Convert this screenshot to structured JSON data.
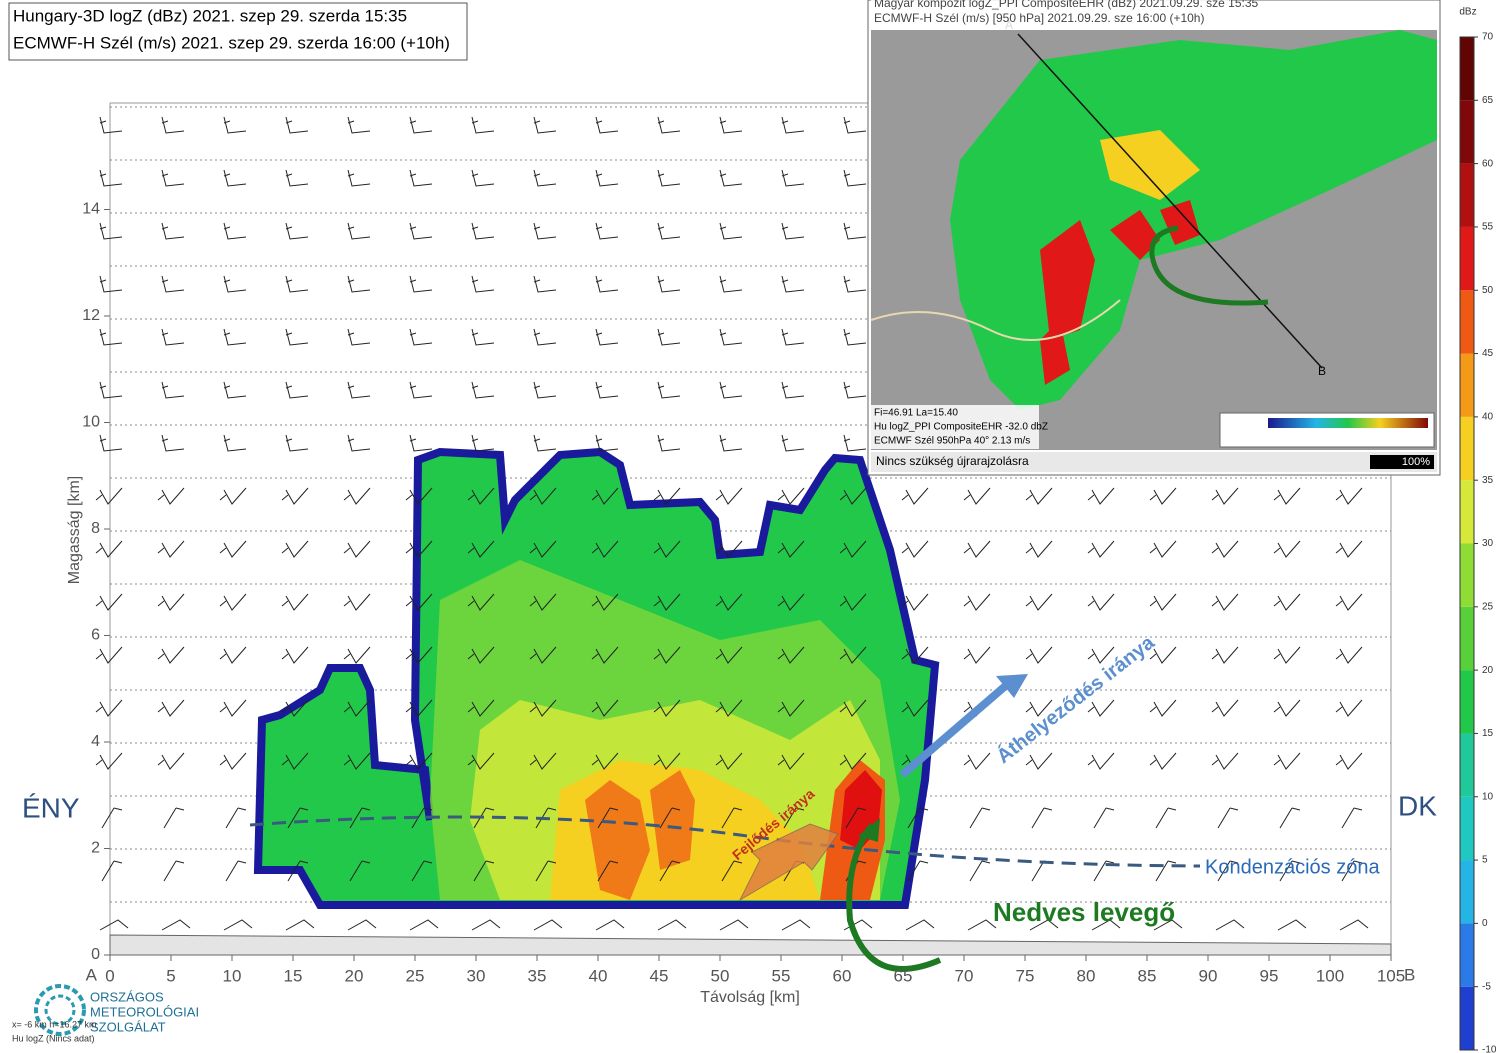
{
  "header": {
    "line1": "Hungary-3D logZ (dBz) 2021. szep 29. szerda 15:35",
    "line2": "ECMWF-H Szél (m/s) 2021. szep 29. szerda 16:00 (+10h)"
  },
  "section": {
    "ylabel": "Magasság [km]",
    "xlabel": "Távolság [km]",
    "xlim": [
      0,
      105
    ],
    "ylim": [
      0,
      16
    ],
    "xticks": [
      0,
      5,
      10,
      15,
      20,
      25,
      30,
      35,
      40,
      45,
      50,
      55,
      60,
      65,
      70,
      75,
      80,
      85,
      90,
      95,
      100,
      105
    ],
    "yticks": [
      0,
      2,
      4,
      6,
      8,
      10,
      12,
      14
    ],
    "x_start": "A",
    "x_end": "B"
  },
  "annotations": {
    "west": "ÉNY",
    "east": "DK",
    "movement": "Áthelyeződés iránya",
    "development": "Fejlődés iránya",
    "condensation": "Kondenzációs  zóna",
    "moist": "Nedves levegő"
  },
  "colorbar": {
    "unit": "dBz",
    "range": [
      -10,
      70
    ],
    "ticks": [
      -10,
      -5,
      0,
      5,
      10,
      15,
      20,
      25,
      30,
      35,
      40,
      45,
      50,
      55,
      60,
      65,
      70
    ],
    "colors": [
      "#1a1a8c",
      "#1f3fd0",
      "#2a7be8",
      "#25b4e6",
      "#1fc8c0",
      "#20c89a",
      "#22c84a",
      "#58d03a",
      "#8fdc34",
      "#d6e83a",
      "#f5d020",
      "#f59a18",
      "#ee5a14",
      "#e01818",
      "#b01010",
      "#800808",
      "#600404"
    ]
  },
  "inset": {
    "title1": "Magyar kompozit logZ_PPI CompositeEHR (dBz) 2021.09.29. sze 15:35",
    "title2": "ECMWF-H Szél (m/s) [950 hPa] 2021.09.29. sze 16:00 (+10h)",
    "info": [
      "Fi=46.91 La=15.40",
      "Hu logZ_PPI CompositeEHR   -32.0 dbZ",
      "ECMWF Szél 950hPa   40° 2.13 m/s"
    ],
    "status": "Nincs szükség újrarajzolásra",
    "zoom": "100%",
    "point_a": "A",
    "point_b": "B"
  },
  "logo": [
    "ORSZÁGOS",
    "METEOROLÓGIAI",
    "SZOLGÁLAT"
  ],
  "cursor": [
    "x=  -6 km h=16.27 km",
    "Hu logZ   (Nincs adat)"
  ]
}
